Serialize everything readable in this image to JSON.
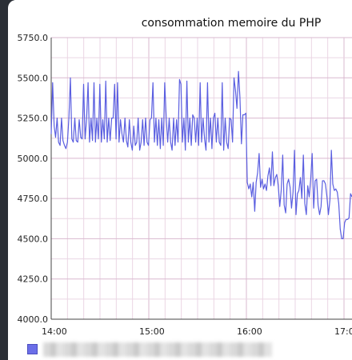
{
  "chart_data": {
    "type": "line",
    "title": "consommation memoire du PHP",
    "xlabel": "",
    "ylabel": "",
    "x_ticks": [
      "14:00",
      "15:00",
      "16:00",
      "17:0"
    ],
    "y_ticks": [
      "5750.0",
      "5500.0",
      "5250.0",
      "5000.0",
      "4750.0",
      "4500.0",
      "4250.0",
      "4000.0"
    ],
    "ylim": [
      4000,
      5750
    ],
    "grid": true,
    "legend_placement": "bottom-left",
    "series": [
      {
        "color": "#5a5ee0",
        "values": [
          5150,
          5470,
          5200,
          5130,
          5250,
          5100,
          5080,
          5250,
          5110,
          5080,
          5060,
          5100,
          5250,
          5500,
          5120,
          5100,
          5250,
          5110,
          5100,
          5240,
          5130,
          5120,
          5460,
          5120,
          5240,
          5470,
          5100,
          5250,
          5110,
          5470,
          5100,
          5250,
          5120,
          5460,
          5100,
          5240,
          5120,
          5480,
          5100,
          5250,
          5110,
          5250,
          5250,
          5460,
          5120,
          5470,
          5100,
          5240,
          5150,
          5100,
          5250,
          5110,
          5070,
          5240,
          5100,
          5050,
          5200,
          5080,
          5100,
          5250,
          5050,
          5100,
          5240,
          5080,
          5250,
          5100,
          5080,
          5240,
          5250,
          5470,
          5100,
          5250,
          5080,
          5240,
          5060,
          5250,
          5080,
          5470,
          5250,
          5100,
          5250,
          5100,
          5050,
          5250,
          5080,
          5240,
          5100,
          5490,
          5460,
          5100,
          5250,
          5050,
          5480,
          5100,
          5250,
          5080,
          5270,
          5250,
          5100,
          5250,
          5080,
          5470,
          5100,
          5250,
          5120,
          5050,
          5470,
          5100,
          5250,
          5060,
          5250,
          5280,
          5100,
          5250,
          5100,
          5080,
          5470,
          5050,
          5250,
          5100,
          5060,
          5250,
          5240,
          5100,
          5500,
          5420,
          5310,
          5540,
          5380,
          5090,
          5270,
          5270,
          5280,
          4850,
          4810,
          4840,
          4760,
          4850,
          4670,
          4850,
          4910,
          5030,
          4820,
          4870,
          4810,
          4840,
          4800,
          4890,
          4940,
          4830,
          5040,
          4830,
          4880,
          4900,
          4830,
          4700,
          4800,
          5020,
          4710,
          4660,
          4840,
          4870,
          4820,
          4690,
          4790,
          5050,
          4650,
          4780,
          4800,
          4880,
          4750,
          5020,
          4720,
          4650,
          4830,
          4760,
          4870,
          5030,
          4690,
          4860,
          4870,
          4710,
          4650,
          4700,
          4860,
          4860,
          4840,
          4760,
          4650,
          4740,
          5050,
          4840,
          4800,
          4810,
          4790,
          4720,
          4560,
          4500,
          4500,
          4600,
          4620,
          4620,
          4630,
          4780,
          4760
        ]
      }
    ]
  }
}
